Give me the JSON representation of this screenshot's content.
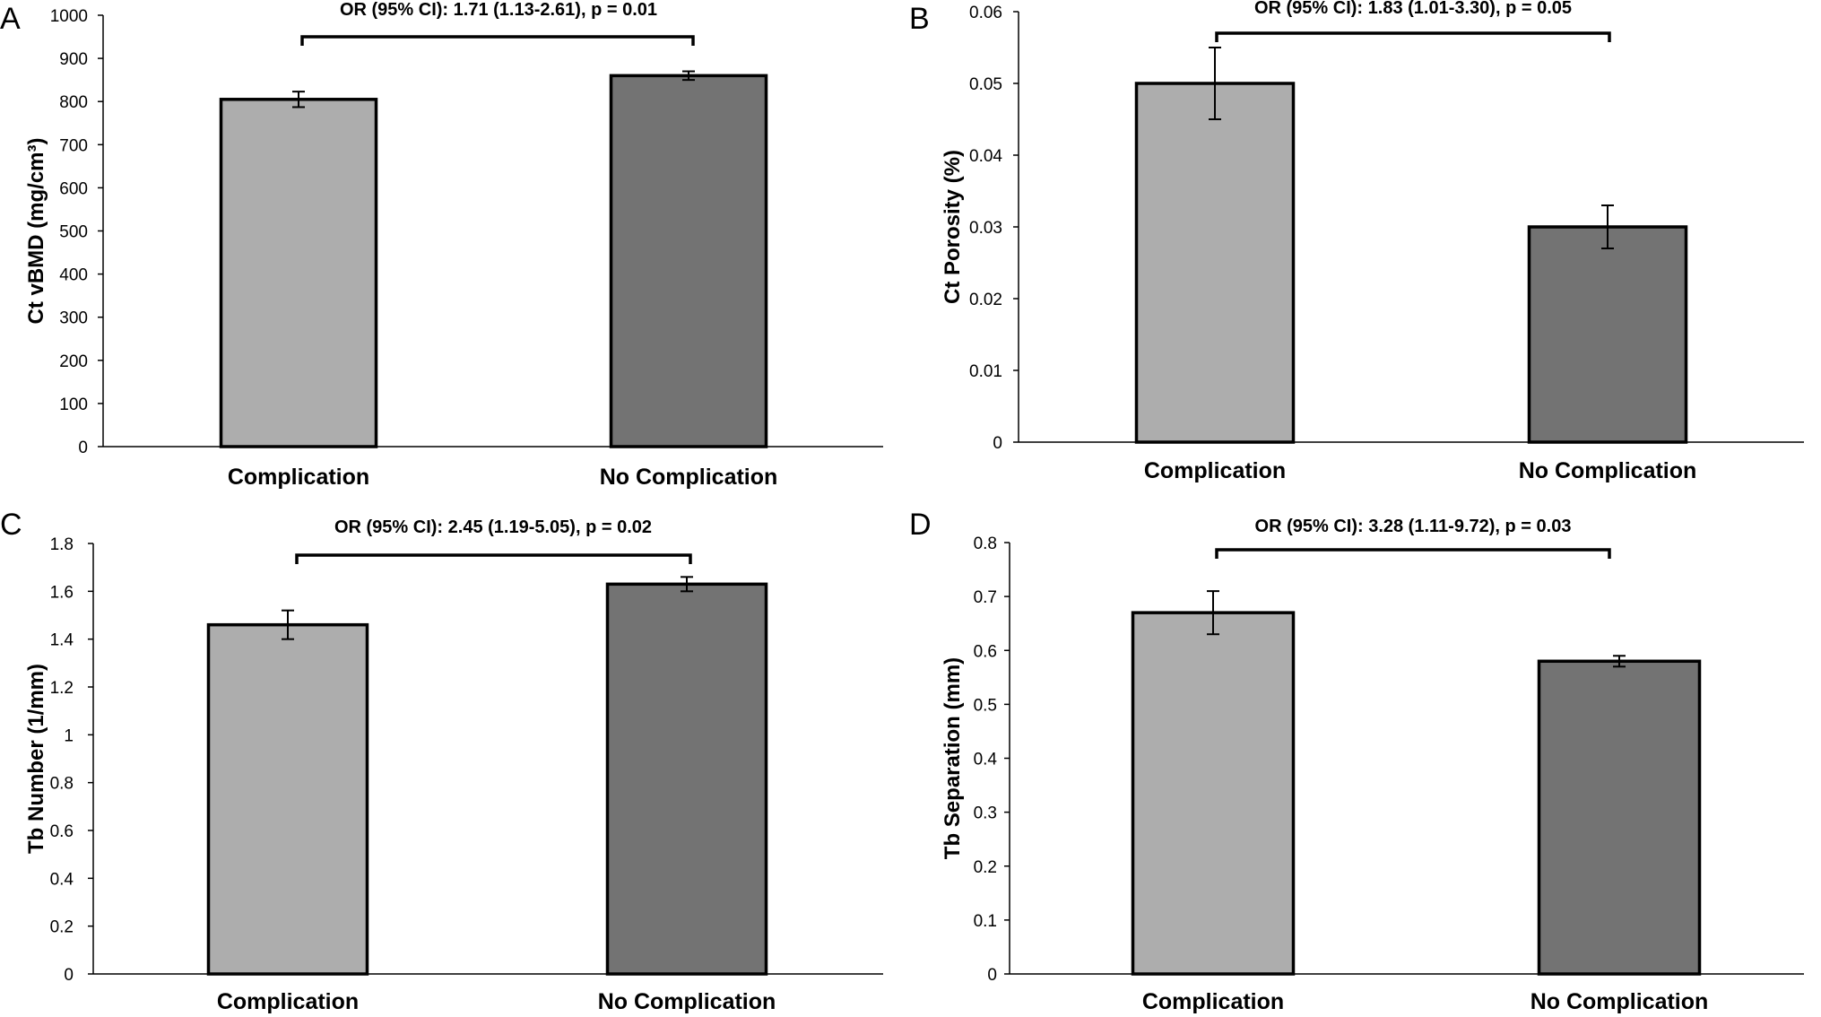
{
  "chart_data": [
    {
      "panel": "A",
      "type": "bar",
      "categories": [
        "Complication",
        "No Complication"
      ],
      "values": [
        805,
        860
      ],
      "errors": [
        18,
        10
      ],
      "colors": [
        "#adadad",
        "#737373"
      ],
      "ylabel": "Ct vBMD (mg/cm³)",
      "ylim": [
        0,
        1000
      ],
      "yticks": [
        "0",
        "100",
        "200",
        "300",
        "400",
        "500",
        "600",
        "700",
        "800",
        "900",
        "1000"
      ],
      "annotation": "OR (95% CI): 1.71 (1.13-2.61), p = 0.01"
    },
    {
      "panel": "B",
      "type": "bar",
      "categories": [
        "Complication",
        "No Complication"
      ],
      "values": [
        0.05,
        0.03
      ],
      "errors": [
        0.005,
        0.003
      ],
      "colors": [
        "#adadad",
        "#737373"
      ],
      "ylabel": "Ct Porosity (%)",
      "ylim": [
        0,
        0.06
      ],
      "yticks": [
        "0",
        "0.01",
        "0.02",
        "0.03",
        "0.04",
        "0.05",
        "0.06"
      ],
      "annotation": "OR (95% CI): 1.83 (1.01-3.30), p = 0.05"
    },
    {
      "panel": "C",
      "type": "bar",
      "categories": [
        "Complication",
        "No Complication"
      ],
      "values": [
        1.46,
        1.63
      ],
      "errors": [
        0.06,
        0.03
      ],
      "colors": [
        "#adadad",
        "#737373"
      ],
      "ylabel": "Tb Number (1/mm)",
      "ylim": [
        0,
        1.8
      ],
      "yticks": [
        "0",
        "0.2",
        "0.4",
        "0.6",
        "0.8",
        "1",
        "1.2",
        "1.4",
        "1.6",
        "1.8"
      ],
      "annotation": "OR (95% CI): 2.45 (1.19-5.05), p = 0.02"
    },
    {
      "panel": "D",
      "type": "bar",
      "categories": [
        "Complication",
        "No Complication"
      ],
      "values": [
        0.67,
        0.58
      ],
      "errors": [
        0.04,
        0.01
      ],
      "colors": [
        "#adadad",
        "#737373"
      ],
      "ylabel": "Tb Separation (mm)",
      "ylim": [
        0,
        0.8
      ],
      "yticks": [
        "0",
        "0.1",
        "0.2",
        "0.3",
        "0.4",
        "0.5",
        "0.6",
        "0.7",
        "0.8"
      ],
      "annotation": "OR (95% CI): 3.28 (1.11-9.72), p = 0.03"
    }
  ]
}
